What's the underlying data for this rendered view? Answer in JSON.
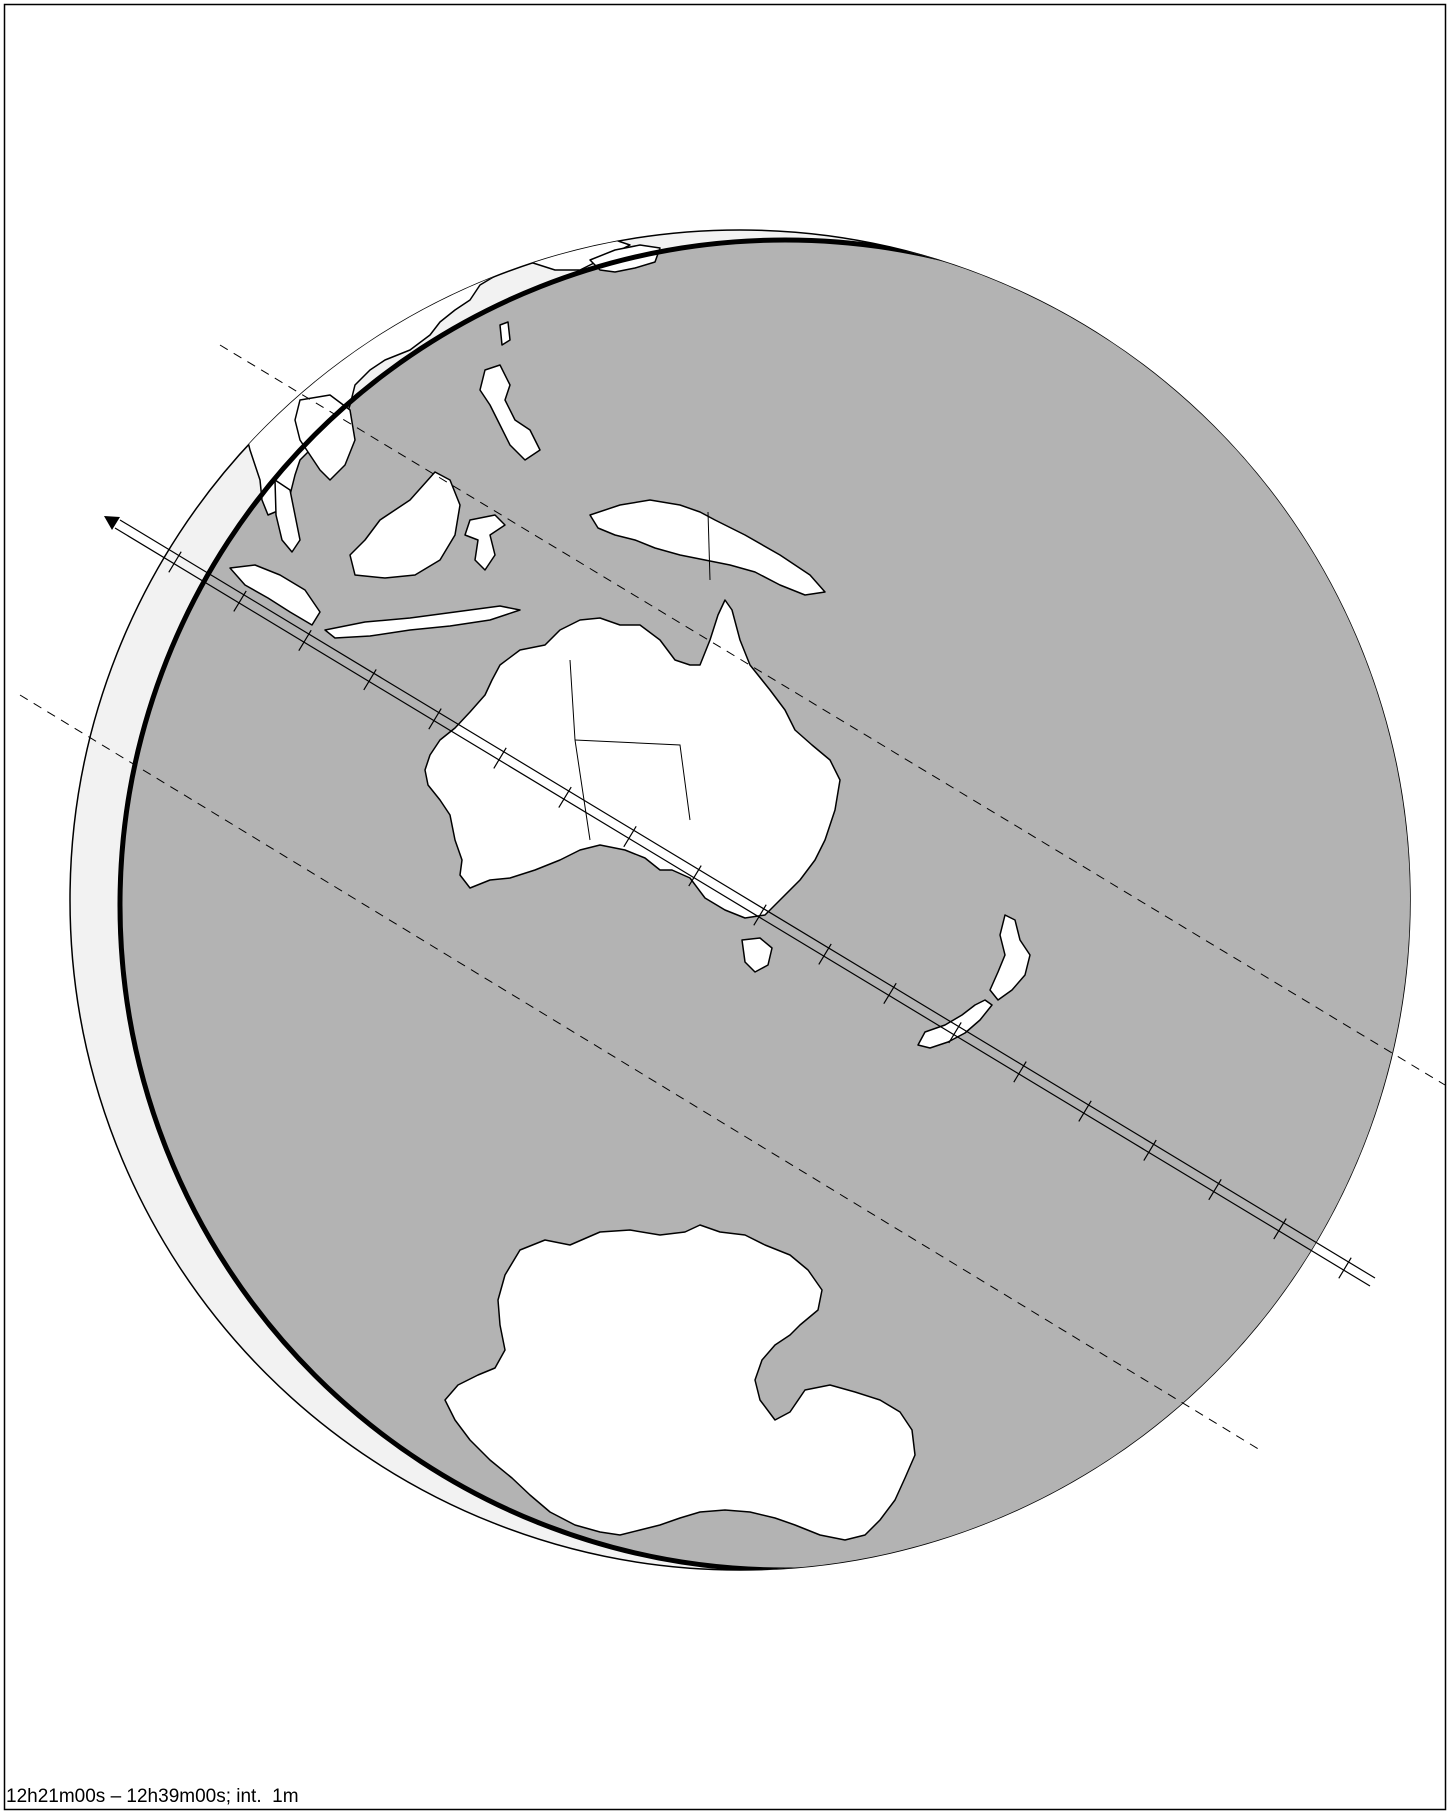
{
  "caption": "12h21m00s – 12h39m00s; int.  1m",
  "colors": {
    "background": "#ffffff",
    "frame": "#000000",
    "ocean_day": "#b3b3b3",
    "night_side": "#f2f2f2",
    "land": "#ffffff",
    "coast": "#000000"
  },
  "path": {
    "start_time": "12h21m00s",
    "end_time": "12h39m00s",
    "interval": "1m",
    "tick_count": 19,
    "direction": "northwest"
  }
}
